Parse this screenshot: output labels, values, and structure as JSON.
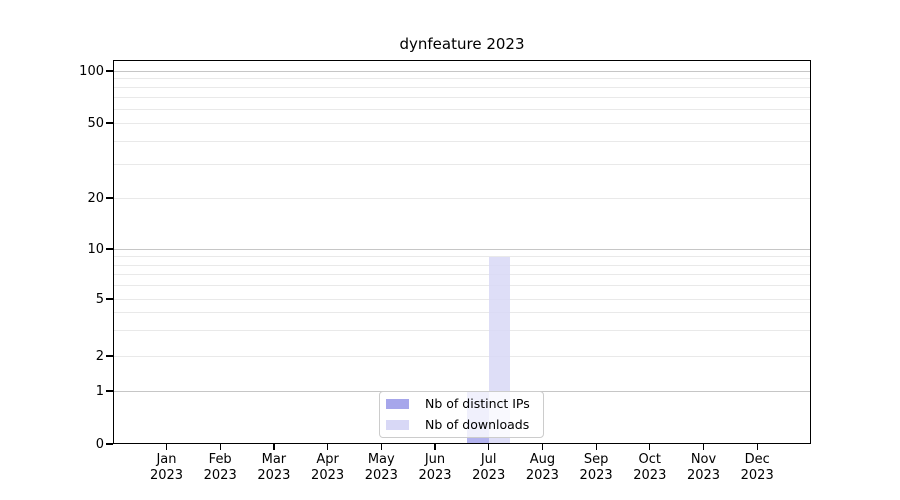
{
  "figure": {
    "title": "dynfeature 2023",
    "background_color": "#ffffff",
    "spine_color": "#000000",
    "major_grid_color": "#c6c6c6",
    "minor_grid_color": "#e9e9e9"
  },
  "chart_data": {
    "type": "bar",
    "title": "dynfeature 2023",
    "xlabel": "",
    "ylabel": "",
    "categories": [
      "Jan 2023",
      "Feb 2023",
      "Mar 2023",
      "Apr 2023",
      "May 2023",
      "Jun 2023",
      "Jul 2023",
      "Aug 2023",
      "Sep 2023",
      "Oct 2023",
      "Nov 2023",
      "Dec 2023"
    ],
    "x_ticks": [
      {
        "month": "Jan",
        "year": "2023"
      },
      {
        "month": "Feb",
        "year": "2023"
      },
      {
        "month": "Mar",
        "year": "2023"
      },
      {
        "month": "Apr",
        "year": "2023"
      },
      {
        "month": "May",
        "year": "2023"
      },
      {
        "month": "Jun",
        "year": "2023"
      },
      {
        "month": "Jul",
        "year": "2023"
      },
      {
        "month": "Aug",
        "year": "2023"
      },
      {
        "month": "Sep",
        "year": "2023"
      },
      {
        "month": "Oct",
        "year": "2023"
      },
      {
        "month": "Nov",
        "year": "2023"
      },
      {
        "month": "Dec",
        "year": "2023"
      }
    ],
    "series": [
      {
        "name": "Nb of distinct IPs",
        "color": "#a6a6eb",
        "values": [
          0,
          0,
          0,
          0,
          0,
          0,
          1,
          0,
          0,
          0,
          0,
          0
        ]
      },
      {
        "name": "Nb of downloads",
        "color": "#d8d8f6",
        "values": [
          0,
          0,
          0,
          0,
          0,
          0,
          9,
          0,
          0,
          0,
          0,
          0
        ]
      }
    ],
    "yscale": "symlog",
    "y_ticks": [
      0,
      1,
      2,
      5,
      10,
      20,
      50,
      100
    ],
    "y_major_gridlines": [
      1,
      10,
      100
    ],
    "y_minor_gridlines": [
      3,
      4,
      6,
      7,
      8,
      9,
      30,
      40,
      60,
      70,
      80,
      90
    ],
    "ylim": [
      0,
      115
    ],
    "grid": true,
    "legend_position": "lower center",
    "bar_layout": "grouped"
  }
}
